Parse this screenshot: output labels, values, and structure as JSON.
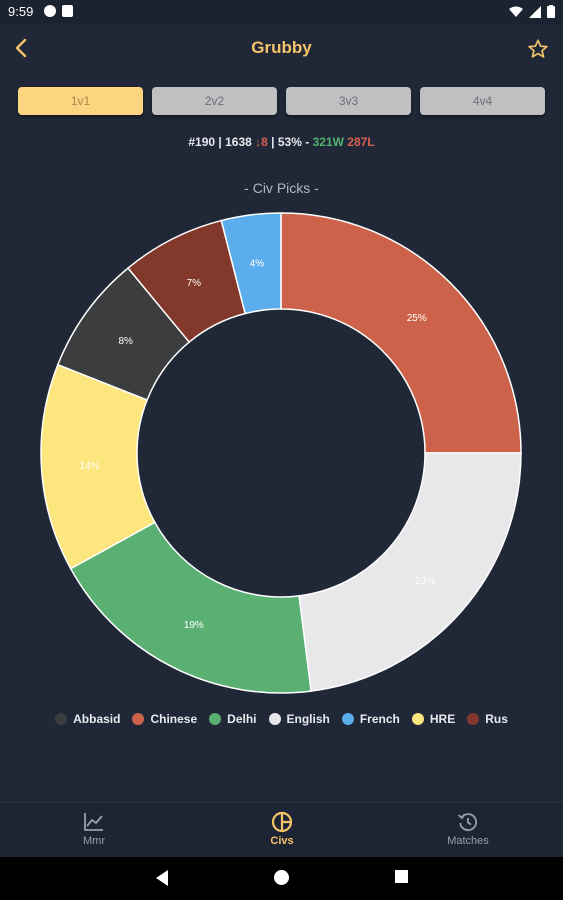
{
  "status_bar": {
    "time": "9:59"
  },
  "app_bar": {
    "title": "Grubby"
  },
  "modes": [
    {
      "label": "1v1",
      "active": true
    },
    {
      "label": "2v2",
      "active": false
    },
    {
      "label": "3v3",
      "active": false
    },
    {
      "label": "4v4",
      "active": false
    }
  ],
  "stats": {
    "rank": "#190",
    "rating": "1638",
    "change": "8",
    "winrate": "53%",
    "wins": "321W",
    "losses": "287L"
  },
  "chart_data": {
    "type": "pie",
    "title": "- Civ Picks -",
    "hole": 0.6,
    "slices": [
      {
        "label": "Chinese",
        "value": 25,
        "text": "25%",
        "color": "#cd624a"
      },
      {
        "label": "English",
        "value": 23,
        "text": "23%",
        "color": "#e8e8ea"
      },
      {
        "label": "Delhi",
        "value": 19,
        "text": "19%",
        "color": "#5ab072"
      },
      {
        "label": "HRE",
        "value": 14,
        "text": "14%",
        "color": "#fde67d"
      },
      {
        "label": "Abbasid",
        "value": 8,
        "text": "8%",
        "color": "#3c3d3f"
      },
      {
        "label": "Rus",
        "value": 7,
        "text": "7%",
        "color": "#83382c"
      },
      {
        "label": "French",
        "value": 4,
        "text": "4%",
        "color": "#5badec"
      }
    ],
    "legend": [
      {
        "label": "Abbasid",
        "color": "#3c3d3f"
      },
      {
        "label": "Chinese",
        "color": "#cd624a"
      },
      {
        "label": "Delhi",
        "color": "#5ab072"
      },
      {
        "label": "English",
        "color": "#e8e8ea"
      },
      {
        "label": "French",
        "color": "#5badec"
      },
      {
        "label": "HRE",
        "color": "#fde67d"
      },
      {
        "label": "Rus",
        "color": "#83382c"
      }
    ],
    "legend_position": "bottom"
  },
  "bottom_nav": [
    {
      "label": "Mmr",
      "icon": "chart-line-icon",
      "active": false
    },
    {
      "label": "Civs",
      "icon": "pie-chart-icon",
      "active": true
    },
    {
      "label": "Matches",
      "icon": "history-icon",
      "active": false
    }
  ],
  "colors": {
    "accent": "#f5c469",
    "background": "#202838",
    "active_tab": "#fdd581"
  }
}
